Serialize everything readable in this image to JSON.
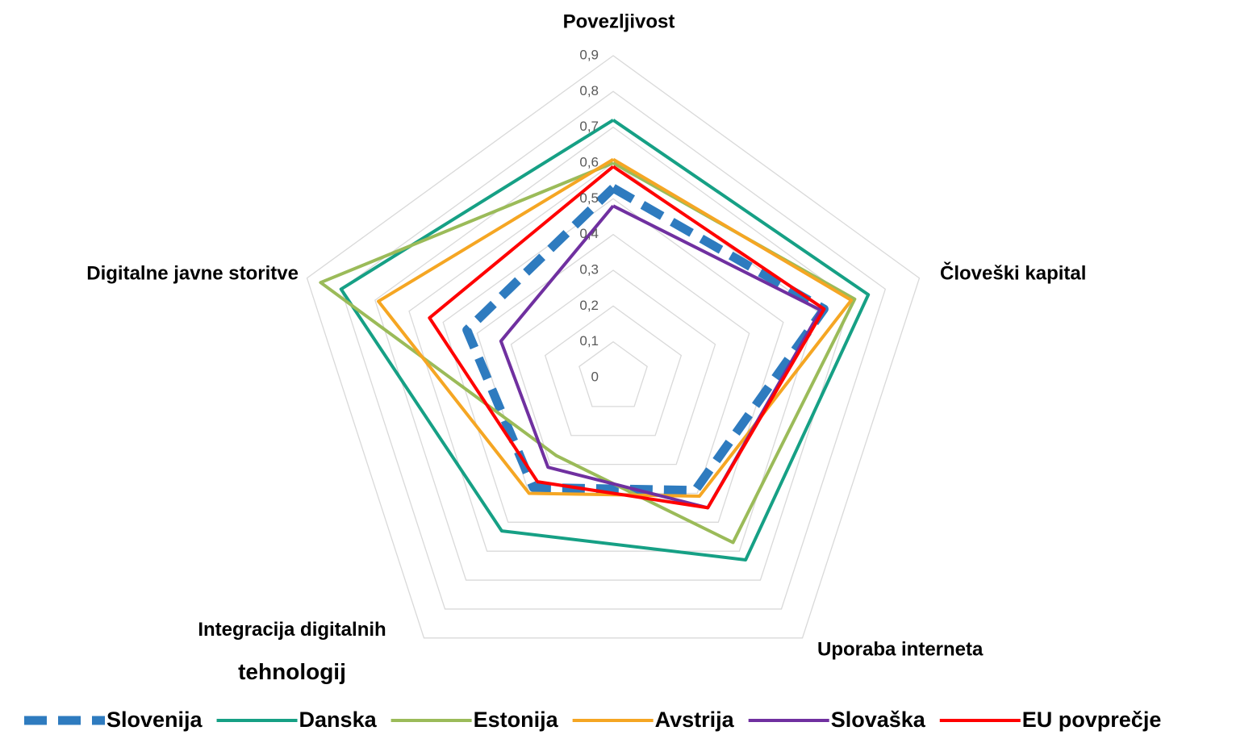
{
  "chart_data": {
    "type": "radar",
    "categories": [
      "Povezljivost",
      "Človeški kapital",
      "Uporaba interneta",
      "Integracija digitalnih tehnologij",
      "Digitalne javne storitve"
    ],
    "ylim": [
      0,
      0.9
    ],
    "yticks": [
      0,
      {
        "value": 0.1,
        "label": "0,1"
      },
      {
        "value": 0.2,
        "label": "0,2"
      },
      {
        "value": 0.3,
        "label": "0,3"
      },
      {
        "value": 0.4,
        "label": "0,4"
      },
      {
        "value": 0.5,
        "label": "0,5"
      },
      {
        "value": 0.6,
        "label": "0,6"
      },
      {
        "value": 0.7,
        "label": "0,7"
      },
      {
        "value": 0.8,
        "label": "0,8"
      },
      {
        "value": 0.9,
        "label": "0,9"
      }
    ],
    "grid": true,
    "legend": "bottom",
    "series": [
      {
        "name": "Slovenija",
        "color": "#2e7bbf",
        "dashed": true,
        "values": [
          0.53,
          0.62,
          0.39,
          0.38,
          0.43
        ]
      },
      {
        "name": "Danska",
        "color": "#16a085",
        "values": [
          0.72,
          0.75,
          0.63,
          0.53,
          0.8
        ]
      },
      {
        "name": "Estonija",
        "color": "#9bbb59",
        "values": [
          0.6,
          0.71,
          0.57,
          0.27,
          0.86
        ]
      },
      {
        "name": "Avstrija",
        "color": "#f5a623",
        "values": [
          0.61,
          0.7,
          0.41,
          0.4,
          0.69
        ]
      },
      {
        "name": "Slovaška",
        "color": "#7030a0",
        "values": [
          0.48,
          0.61,
          0.45,
          0.31,
          0.33
        ]
      },
      {
        "name": "EU povprečje",
        "color": "#ff0000",
        "values": [
          0.59,
          0.62,
          0.45,
          0.36,
          0.54
        ]
      }
    ]
  }
}
